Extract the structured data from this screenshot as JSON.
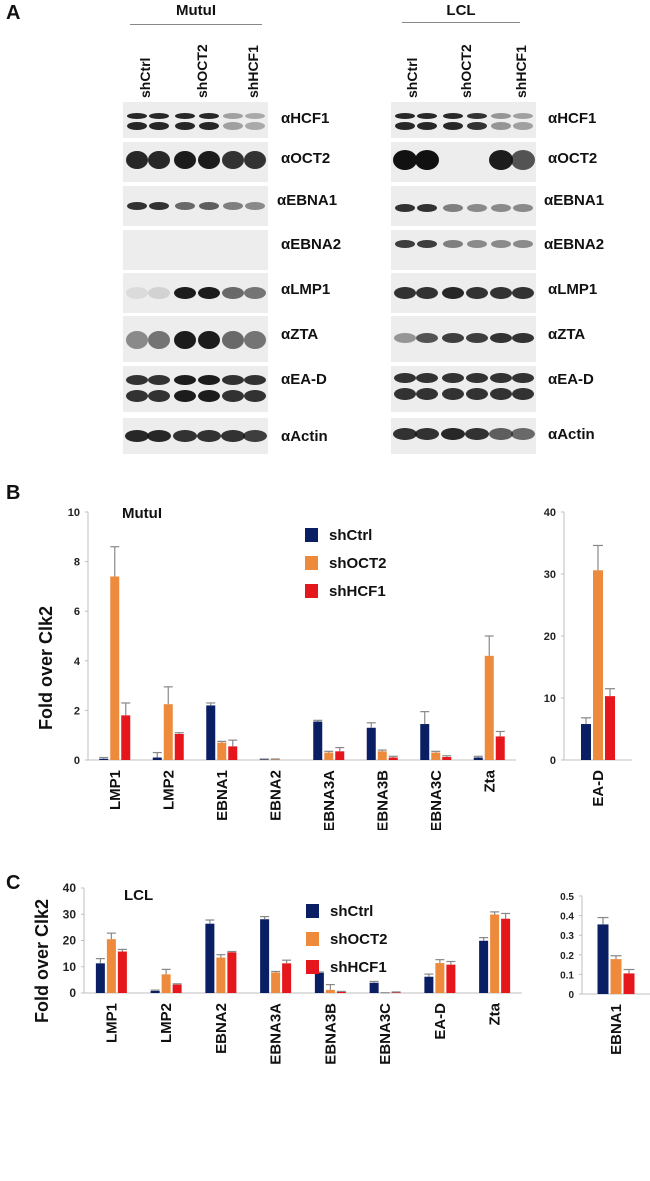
{
  "panels": {
    "a": "A",
    "b": "B",
    "c": "C"
  },
  "blots": [
    {
      "title": "MutuI",
      "lanes": [
        "shCtrl",
        "shOCT2",
        "shHCF1"
      ],
      "antibodies": [
        "αHCF1",
        "αOCT2",
        "αEBNA1",
        "αEBNA2",
        "αLMP1",
        "αZTA",
        "αEA-D",
        "αActin"
      ]
    },
    {
      "title": "LCL",
      "lanes": [
        "shCtrl",
        "shOCT2",
        "shHCF1"
      ],
      "antibodies": [
        "αHCF1",
        "αOCT2",
        "αEBNA1",
        "αEBNA2",
        "αLMP1",
        "αZTA",
        "αEA-D",
        "αActin"
      ]
    }
  ],
  "colors": {
    "shCtrl": "#0a1f63",
    "shOCT2": "#ed8a3c",
    "shHCF1": "#e5161c",
    "axis": "#bfbfbf"
  },
  "chart_data": [
    {
      "type": "bar",
      "annotation": "MutuI",
      "ylabel": "Fold over Clk2",
      "categories": [
        "LMP1",
        "LMP2",
        "EBNA1",
        "EBNA2",
        "EBNA3A",
        "EBNA3B",
        "EBNA3C",
        "Zta"
      ],
      "ylim": [
        0,
        10
      ],
      "yticks": [
        0,
        2,
        4,
        6,
        8,
        10
      ],
      "series": [
        {
          "name": "shCtrl",
          "values": [
            0.05,
            0.1,
            2.2,
            0.02,
            1.55,
            1.3,
            1.45,
            0.1
          ],
          "errors": [
            0.05,
            0.2,
            0.1,
            0.02,
            0.05,
            0.2,
            0.5,
            0.05
          ]
        },
        {
          "name": "shOCT2",
          "values": [
            7.4,
            2.25,
            0.7,
            0.02,
            0.3,
            0.35,
            0.3,
            4.2
          ],
          "errors": [
            1.2,
            0.7,
            0.05,
            0.02,
            0.05,
            0.05,
            0.05,
            0.8
          ]
        },
        {
          "name": "shHCF1",
          "values": [
            1.8,
            1.05,
            0.55,
            0.0,
            0.35,
            0.1,
            0.12,
            0.95
          ],
          "errors": [
            0.5,
            0.05,
            0.25,
            0.0,
            0.15,
            0.05,
            0.05,
            0.2
          ]
        }
      ],
      "legend": [
        "shCtrl",
        "shOCT2",
        "shHCF1"
      ]
    },
    {
      "type": "bar",
      "categories": [
        "EA-D"
      ],
      "ylim": [
        0,
        40
      ],
      "yticks": [
        0,
        10,
        20,
        30,
        40
      ],
      "series": [
        {
          "name": "shCtrl",
          "values": [
            5.8
          ],
          "errors": [
            1.0
          ]
        },
        {
          "name": "shOCT2",
          "values": [
            30.6
          ],
          "errors": [
            4.0
          ]
        },
        {
          "name": "shHCF1",
          "values": [
            10.3
          ],
          "errors": [
            1.2
          ]
        }
      ]
    },
    {
      "type": "bar",
      "annotation": "LCL",
      "ylabel": "Fold over Clk2",
      "categories": [
        "LMP1",
        "LMP2",
        "EBNA2",
        "EBNA3A",
        "EBNA3B",
        "EBNA3C",
        "EA-D",
        "Zta"
      ],
      "ylim": [
        0,
        40
      ],
      "yticks": [
        0,
        10,
        20,
        30,
        40
      ],
      "series": [
        {
          "name": "shCtrl",
          "values": [
            11.3,
            0.8,
            26.4,
            28.1,
            7.7,
            3.9,
            6.2,
            19.9
          ],
          "errors": [
            1.8,
            0.3,
            1.4,
            1.0,
            0.3,
            0.5,
            1.0,
            1.2
          ]
        },
        {
          "name": "shOCT2",
          "values": [
            20.5,
            7.1,
            13.5,
            7.8,
            1.2,
            0.05,
            11.4,
            29.9
          ],
          "errors": [
            2.3,
            1.9,
            1.1,
            0.4,
            2.0,
            0.05,
            1.3,
            1.0
          ]
        },
        {
          "name": "shHCF1",
          "values": [
            15.8,
            3.2,
            15.5,
            11.3,
            0.4,
            0.3,
            10.8,
            28.3
          ],
          "errors": [
            0.8,
            0.3,
            0.3,
            1.2,
            0.2,
            0.1,
            1.2,
            2.0
          ]
        }
      ],
      "legend": [
        "shCtrl",
        "shOCT2",
        "shHCF1"
      ]
    },
    {
      "type": "bar",
      "categories": [
        "EBNA1"
      ],
      "ylim": [
        0,
        0.5
      ],
      "yticks": [
        0,
        0.1,
        0.2,
        0.3,
        0.4,
        0.5
      ],
      "series": [
        {
          "name": "shCtrl",
          "values": [
            0.355
          ],
          "errors": [
            0.035
          ]
        },
        {
          "name": "shOCT2",
          "values": [
            0.178
          ],
          "errors": [
            0.017
          ]
        },
        {
          "name": "shHCF1",
          "values": [
            0.105
          ],
          "errors": [
            0.02
          ]
        }
      ]
    }
  ]
}
